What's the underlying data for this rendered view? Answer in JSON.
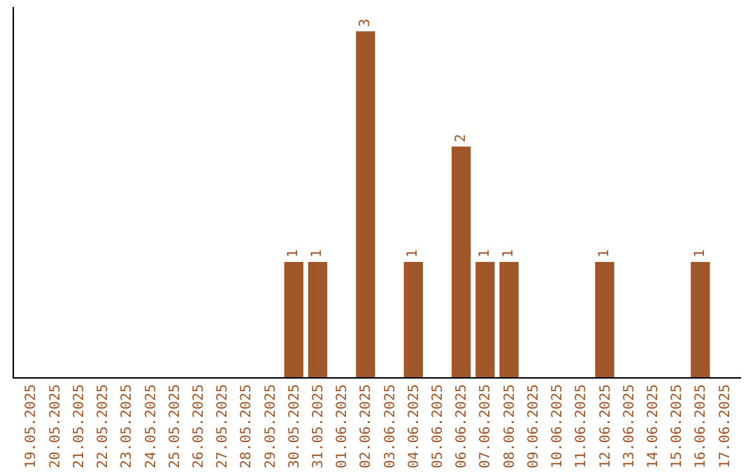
{
  "chart_data": {
    "type": "bar",
    "categories": [
      "19.05.2025",
      "20.05.2025",
      "21.05.2025",
      "22.05.2025",
      "23.05.2025",
      "24.05.2025",
      "25.05.2025",
      "26.05.2025",
      "27.05.2025",
      "28.05.2025",
      "29.05.2025",
      "30.05.2025",
      "31.05.2025",
      "01.06.2025",
      "02.06.2025",
      "03.06.2025",
      "04.06.2025",
      "05.06.2025",
      "06.06.2025",
      "07.06.2025",
      "08.06.2025",
      "09.06.2025",
      "10.06.2025",
      "11.06.2025",
      "12.06.2025",
      "13.06.2025",
      "14.06.2025",
      "15.06.2025",
      "16.06.2025",
      "17.06.2025"
    ],
    "values": [
      null,
      null,
      null,
      null,
      null,
      null,
      null,
      null,
      null,
      null,
      null,
      1,
      1,
      null,
      3,
      null,
      1,
      null,
      2,
      1,
      1,
      null,
      null,
      null,
      1,
      null,
      null,
      null,
      1,
      null
    ],
    "color": "#a0572a",
    "data_labels": true,
    "legend": false
  }
}
